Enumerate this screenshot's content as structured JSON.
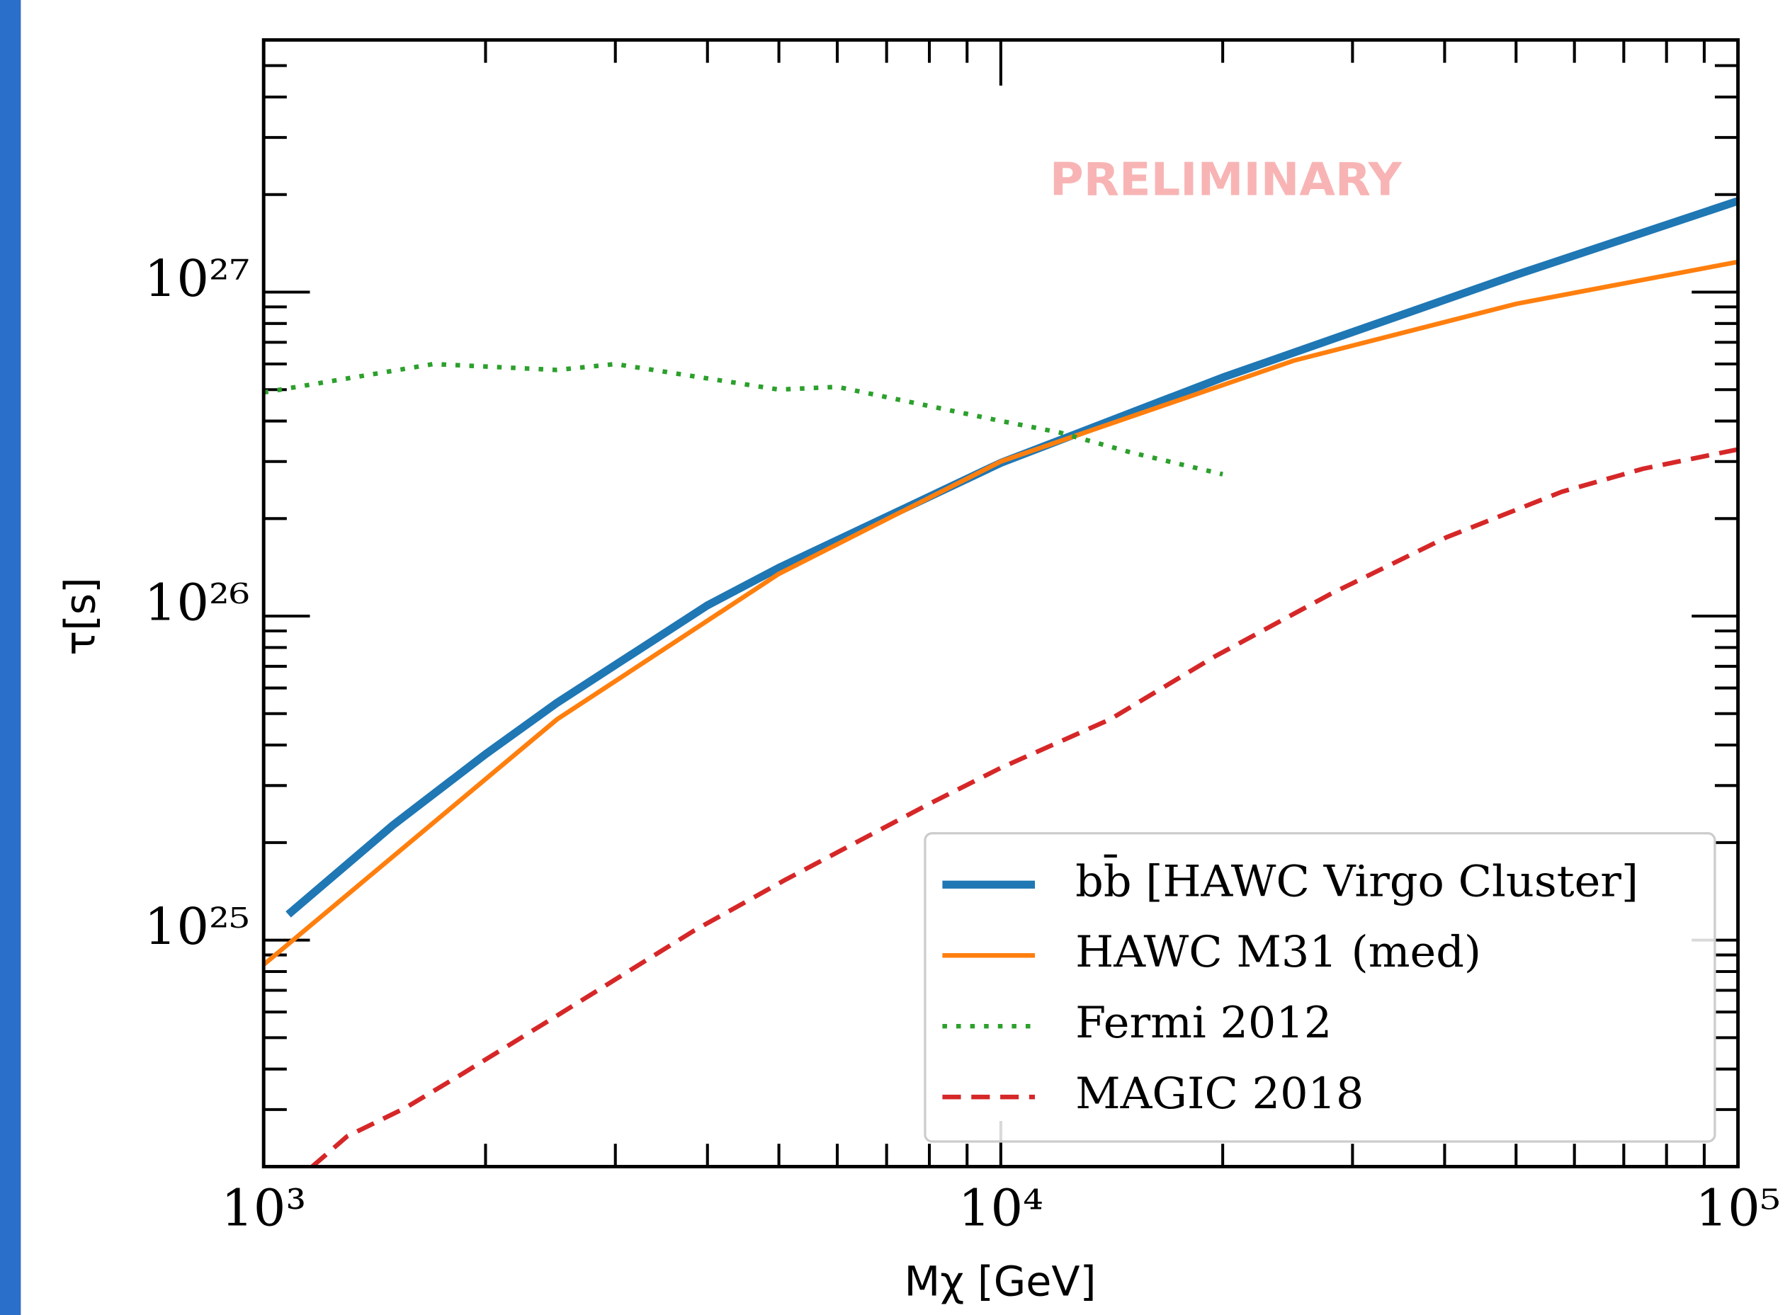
{
  "chart_data": {
    "type": "line",
    "annotation": "PRELIMINARY",
    "x_label": "Mχ [GeV]",
    "y_label": "τ[s]",
    "xscale": "log",
    "yscale": "log",
    "xlim": [
      1000,
      100000
    ],
    "ylim": [
      2e+24,
      6e+27
    ],
    "xticks": [
      {
        "value": 1000,
        "label": "10³"
      },
      {
        "value": 10000,
        "label": "10⁴"
      },
      {
        "value": 100000,
        "label": "10⁵"
      }
    ],
    "yticks": [
      {
        "value": 1e+25,
        "label": "10²⁵"
      },
      {
        "value": 1e+26,
        "label": "10²⁶"
      },
      {
        "value": 1e+27,
        "label": "10²⁷"
      }
    ],
    "xminorticks": [
      2000,
      3000,
      4000,
      5000,
      6000,
      7000,
      8000,
      9000,
      20000,
      30000,
      40000,
      50000,
      60000,
      70000,
      80000,
      90000
    ],
    "yminorticks": [
      3e+24,
      4e+24,
      5e+24,
      6e+24,
      7e+24,
      8e+24,
      9e+24,
      2e+25,
      3e+25,
      4e+25,
      5e+25,
      6e+25,
      7e+25,
      8e+25,
      9e+25,
      2e+26,
      3e+26,
      4e+26,
      5e+26,
      6e+26,
      7e+26,
      8e+26,
      9e+26,
      2e+27,
      3e+27,
      4e+27,
      5e+27
    ],
    "legend": "lower right",
    "series": [
      {
        "name": "bb̄  [HAWC Virgo Cluster]",
        "color": "#1f77b4",
        "linestyle": "solid",
        "x": [
          1080,
          1500,
          2000,
          2500,
          4000,
          5000,
          10000,
          20000,
          50000,
          100000
        ],
        "values": [
          1.2e+25,
          2.27e+25,
          3.75e+25,
          5.4e+25,
          1.08e+26,
          1.41e+26,
          2.97e+26,
          5.45e+26,
          1.13e+27,
          1.91e+27
        ]
      },
      {
        "name": "HAWC M31 (med)",
        "color": "#ff7f0e",
        "linestyle": "solid",
        "x": [
          1000,
          2500,
          5000,
          10000,
          25000,
          50000,
          100000
        ],
        "values": [
          8.4e+24,
          4.8e+25,
          1.35e+26,
          3e+26,
          6.15e+26,
          9.2e+26,
          1.24e+27
        ]
      },
      {
        "name": "Fermi 2012",
        "color": "#2ca02c",
        "linestyle": "dotted",
        "x": [
          1000,
          1700,
          2500,
          3000,
          5000,
          6000,
          8000,
          10000,
          12000,
          15000,
          20000
        ],
        "values": [
          4.9e+26,
          6e+26,
          5.75e+26,
          6e+26,
          5e+26,
          5.1e+26,
          4.45e+26,
          4e+26,
          3.69e+26,
          3.2e+26,
          2.74e+26
        ]
      },
      {
        "name": "MAGIC 2018",
        "color": "#d62728",
        "linestyle": "dashed",
        "x": [
          1164,
          1298,
          1554,
          1861,
          2487,
          3835,
          5114,
          7910,
          10000,
          14070,
          19500,
          28000,
          40200,
          57700,
          74400,
          100000
        ],
        "values": [
          2e+24,
          2.48e+24,
          3.03e+24,
          3.87e+24,
          5.8e+24,
          1.07e+25,
          1.54e+25,
          2.6e+25,
          3.4e+25,
          4.8e+25,
          7.5e+25,
          1.17e+26,
          1.75e+26,
          2.42e+26,
          2.85e+26,
          3.27e+26
        ]
      }
    ]
  }
}
